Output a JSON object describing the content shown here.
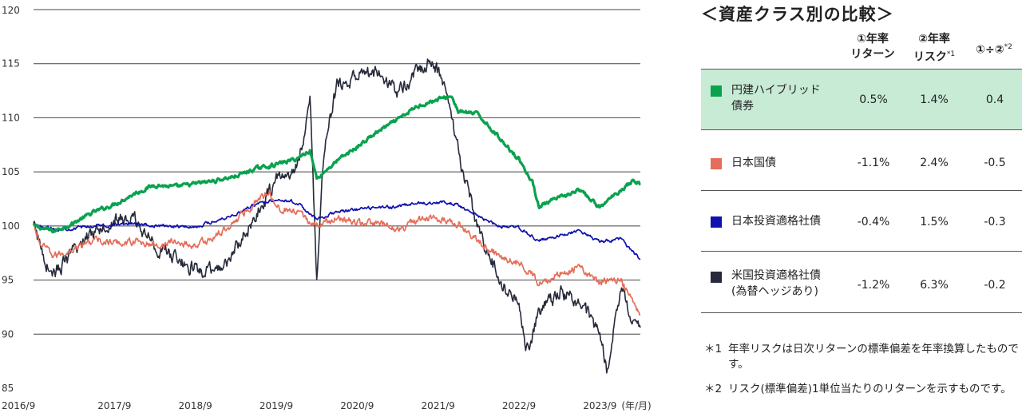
{
  "chart_data": {
    "type": "line",
    "xlabel": "(年/月)",
    "x_ticks": [
      "2016/9",
      "2017/9",
      "2018/9",
      "2019/9",
      "2020/9",
      "2021/9",
      "2022/9",
      "2023/9"
    ],
    "y_ticks": [
      85,
      90,
      95,
      100,
      105,
      110,
      115,
      120
    ],
    "ylim": [
      85,
      120
    ],
    "xlim": [
      "2016/9",
      "2024/3"
    ],
    "grid": "horizontal",
    "series": [
      {
        "name": "円建ハイブリッド債券",
        "color": "#0aa24f",
        "points": [
          [
            "2016/9",
            100.0
          ],
          [
            "2016/12",
            99.5
          ],
          [
            "2017/3",
            100.3
          ],
          [
            "2017/6",
            101.3
          ],
          [
            "2017/9",
            102.0
          ],
          [
            "2017/12",
            103.0
          ],
          [
            "2018/3",
            103.8
          ],
          [
            "2018/6",
            103.6
          ],
          [
            "2018/9",
            103.9
          ],
          [
            "2018/12",
            104.2
          ],
          [
            "2019/3",
            104.6
          ],
          [
            "2019/6",
            105.3
          ],
          [
            "2019/9",
            105.7
          ],
          [
            "2019/12",
            106.2
          ],
          [
            "2020/2",
            107.0
          ],
          [
            "2020/3",
            104.4
          ],
          [
            "2020/6",
            106.0
          ],
          [
            "2020/9",
            107.3
          ],
          [
            "2020/12",
            108.7
          ],
          [
            "2021/3",
            109.8
          ],
          [
            "2021/6",
            111.1
          ],
          [
            "2021/9",
            111.7
          ],
          [
            "2021/11",
            112.0
          ],
          [
            "2021/12",
            110.6
          ],
          [
            "2022/3",
            110.3
          ],
          [
            "2022/6",
            108.2
          ],
          [
            "2022/9",
            106.2
          ],
          [
            "2022/11",
            104.0
          ],
          [
            "2022/12",
            101.8
          ],
          [
            "2023/3",
            102.6
          ],
          [
            "2023/6",
            103.3
          ],
          [
            "2023/9",
            101.7
          ],
          [
            "2023/12",
            103.3
          ],
          [
            "2024/2",
            104.2
          ],
          [
            "2024/3",
            103.9
          ]
        ]
      },
      {
        "name": "日本国債",
        "color": "#e46e5a",
        "points": [
          [
            "2016/9",
            100.0
          ],
          [
            "2016/10",
            98.3
          ],
          [
            "2016/12",
            97.2
          ],
          [
            "2017/3",
            97.9
          ],
          [
            "2017/6",
            98.7
          ],
          [
            "2017/9",
            98.4
          ],
          [
            "2017/12",
            98.6
          ],
          [
            "2018/3",
            98.2
          ],
          [
            "2018/6",
            98.5
          ],
          [
            "2018/9",
            98.2
          ],
          [
            "2018/12",
            99.0
          ],
          [
            "2019/3",
            100.5
          ],
          [
            "2019/6",
            102.3
          ],
          [
            "2019/8",
            103.3
          ],
          [
            "2019/9",
            101.8
          ],
          [
            "2019/12",
            101.2
          ],
          [
            "2020/3",
            100.0
          ],
          [
            "2020/6",
            100.7
          ],
          [
            "2020/9",
            100.3
          ],
          [
            "2020/12",
            100.2
          ],
          [
            "2021/3",
            99.7
          ],
          [
            "2021/6",
            100.5
          ],
          [
            "2021/9",
            100.7
          ],
          [
            "2021/12",
            100.3
          ],
          [
            "2022/3",
            98.5
          ],
          [
            "2022/6",
            97.3
          ],
          [
            "2022/9",
            96.6
          ],
          [
            "2022/12",
            94.8
          ],
          [
            "2023/3",
            95.6
          ],
          [
            "2023/6",
            96.2
          ],
          [
            "2023/9",
            94.7
          ],
          [
            "2023/12",
            95.2
          ],
          [
            "2024/3",
            91.8
          ]
        ]
      },
      {
        "name": "日本投資適格社債",
        "color": "#1010b0",
        "points": [
          [
            "2016/9",
            100.0
          ],
          [
            "2016/12",
            99.7
          ],
          [
            "2017/3",
            99.8
          ],
          [
            "2017/6",
            100.0
          ],
          [
            "2017/9",
            100.1
          ],
          [
            "2017/12",
            100.3
          ],
          [
            "2018/3",
            100.0
          ],
          [
            "2018/6",
            100.0
          ],
          [
            "2018/9",
            99.9
          ],
          [
            "2018/12",
            100.5
          ],
          [
            "2019/3",
            101.1
          ],
          [
            "2019/6",
            102.0
          ],
          [
            "2019/9",
            102.5
          ],
          [
            "2019/12",
            102.2
          ],
          [
            "2020/3",
            100.6
          ],
          [
            "2020/6",
            101.3
          ],
          [
            "2020/9",
            101.5
          ],
          [
            "2020/12",
            101.7
          ],
          [
            "2021/3",
            101.8
          ],
          [
            "2021/6",
            102.1
          ],
          [
            "2021/9",
            102.2
          ],
          [
            "2021/12",
            102.0
          ],
          [
            "2022/3",
            100.8
          ],
          [
            "2022/6",
            100.0
          ],
          [
            "2022/9",
            99.8
          ],
          [
            "2022/12",
            98.6
          ],
          [
            "2023/3",
            99.1
          ],
          [
            "2023/6",
            99.6
          ],
          [
            "2023/9",
            98.5
          ],
          [
            "2023/12",
            98.8
          ],
          [
            "2024/3",
            96.9
          ]
        ]
      },
      {
        "name": "米国投資適格社債(為替ヘッジあり)",
        "color": "#262a3a",
        "points": [
          [
            "2016/9",
            100.0
          ],
          [
            "2016/11",
            96.5
          ],
          [
            "2016/12",
            95.6
          ],
          [
            "2017/3",
            97.5
          ],
          [
            "2017/6",
            99.7
          ],
          [
            "2017/9",
            100.6
          ],
          [
            "2017/12",
            100.5
          ],
          [
            "2018/3",
            98.2
          ],
          [
            "2018/6",
            97.0
          ],
          [
            "2018/9",
            96.0
          ],
          [
            "2018/12",
            95.6
          ],
          [
            "2019/3",
            97.8
          ],
          [
            "2019/6",
            101.0
          ],
          [
            "2019/9",
            104.2
          ],
          [
            "2019/12",
            105.3
          ],
          [
            "2020/2",
            111.3
          ],
          [
            "2020/3",
            95.4
          ],
          [
            "2020/4",
            106.3
          ],
          [
            "2020/6",
            113.0
          ],
          [
            "2020/9",
            113.8
          ],
          [
            "2020/12",
            114.3
          ],
          [
            "2021/3",
            112.3
          ],
          [
            "2021/6",
            114.3
          ],
          [
            "2021/8",
            115.4
          ],
          [
            "2021/10",
            113.0
          ],
          [
            "2021/12",
            106.8
          ],
          [
            "2022/3",
            99.6
          ],
          [
            "2022/6",
            95.2
          ],
          [
            "2022/9",
            92.6
          ],
          [
            "2022/10",
            88.3
          ],
          [
            "2022/12",
            92.0
          ],
          [
            "2023/3",
            94.0
          ],
          [
            "2023/6",
            93.1
          ],
          [
            "2023/9",
            90.0
          ],
          [
            "2023/10",
            86.6
          ],
          [
            "2023/12",
            94.1
          ],
          [
            "2024/2",
            91.4
          ],
          [
            "2024/3",
            90.6
          ]
        ]
      }
    ]
  },
  "panel": {
    "title": "＜資産クラス別の比較＞",
    "headers": {
      "col1_line1": "①年率",
      "col1_line2": "リターン",
      "col2_line1": "②年率",
      "col2_line2": "リスク",
      "col2_mark": "*1",
      "col3": "①÷②",
      "col3_mark": "*2"
    },
    "rows": [
      {
        "color": "#0aa24f",
        "label1": "円建ハイブリッド",
        "label2": "債券",
        "ret": "0.5%",
        "risk": "1.4%",
        "ratio": "0.4",
        "highlight": true
      },
      {
        "color": "#e46e5a",
        "label1": "日本国債",
        "label2": "",
        "ret": "-1.1%",
        "risk": "2.4%",
        "ratio": "-0.5"
      },
      {
        "color": "#1010b0",
        "label1": "日本投資適格社債",
        "label2": "",
        "ret": "-0.4%",
        "risk": "1.5%",
        "ratio": "-0.3"
      },
      {
        "color": "#262a3a",
        "label1": "米国投資適格社債",
        "label2": "(為替ヘッジあり)",
        "ret": "-1.2%",
        "risk": "6.3%",
        "ratio": "-0.2"
      }
    ],
    "notes": [
      {
        "mark": "＊1",
        "text": "年率リスクは日次リターンの標準偏差を年率換算したものです。"
      },
      {
        "mark": "＊2",
        "text": "リスク(標準偏差)1単位当たりのリターンを示すものです。"
      }
    ]
  }
}
